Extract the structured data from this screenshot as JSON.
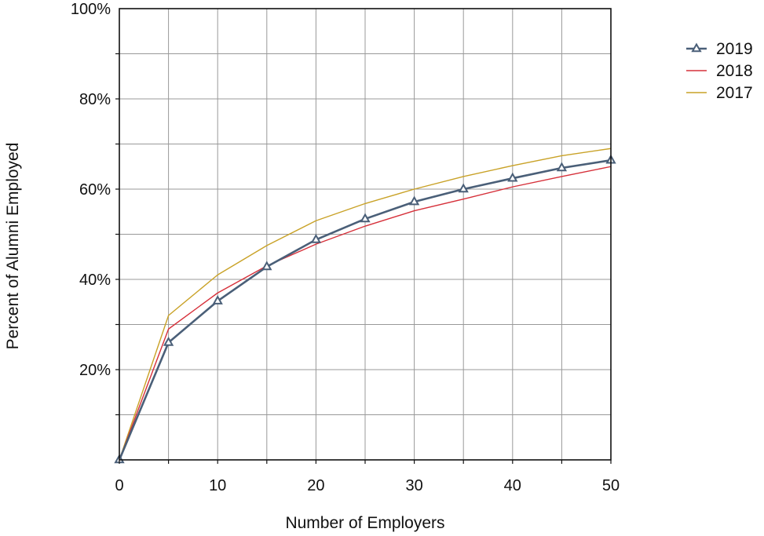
{
  "chart_data": {
    "type": "line",
    "title": "",
    "xlabel": "Number of Employers",
    "ylabel": "Percent of Alumni Employed",
    "xlim": [
      0,
      50
    ],
    "ylim": [
      0,
      100
    ],
    "x_ticks": [
      0,
      10,
      20,
      30,
      40,
      50
    ],
    "y_ticks": [
      20,
      40,
      60,
      80,
      100
    ],
    "y_tick_labels": [
      "20%",
      "40%",
      "60%",
      "80%",
      "100%"
    ],
    "grid": true,
    "legend_position": "top-right",
    "x": [
      0,
      5,
      10,
      15,
      20,
      25,
      30,
      35,
      40,
      45,
      50
    ],
    "series": [
      {
        "name": "2019",
        "color": "#4a5f78",
        "marker": "triangle",
        "values": [
          0,
          26,
          35.2,
          42.8,
          48.8,
          53.4,
          57.2,
          60,
          62.4,
          64.7,
          66.4
        ]
      },
      {
        "name": "2018",
        "color": "#d6303a",
        "marker": "none",
        "values": [
          0,
          29,
          37,
          43,
          47.8,
          51.8,
          55.2,
          57.8,
          60.5,
          62.8,
          65
        ]
      },
      {
        "name": "2017",
        "color": "#c9a227",
        "marker": "none",
        "values": [
          0,
          32,
          41,
          47.5,
          53,
          56.8,
          60,
          62.8,
          65.2,
          67.4,
          69
        ]
      }
    ]
  }
}
